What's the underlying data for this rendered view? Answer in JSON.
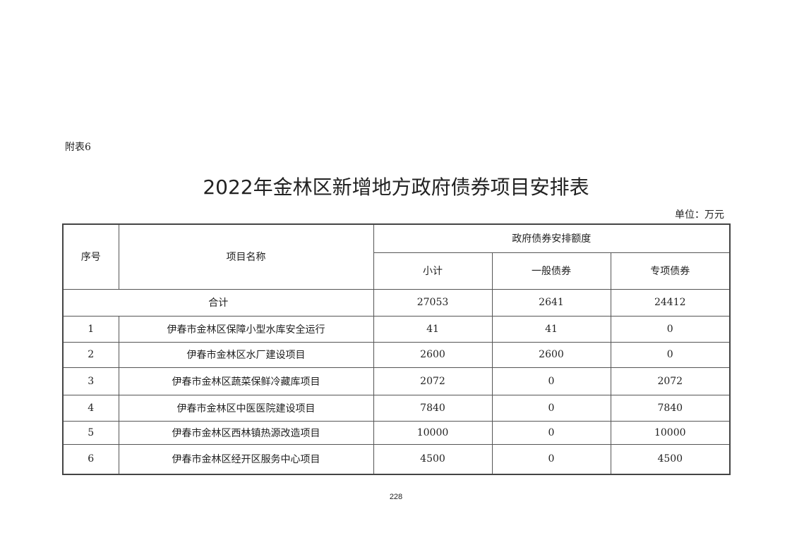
{
  "appendix_label": "附表6",
  "title": "2022年金林区新增地方政府债券项目安排表",
  "unit": "单位：万元",
  "table": {
    "headers": {
      "seq": "序号",
      "name": "项目名称",
      "group": "政府债券安排额度",
      "subtotal": "小计",
      "general": "一般债券",
      "special": "专项债券"
    },
    "total": {
      "label": "合计",
      "subtotal": "27053",
      "general": "2641",
      "special": "24412"
    },
    "rows": [
      {
        "seq": "1",
        "name": "伊春市金林区保障小型水库安全运行",
        "subtotal": "41",
        "general": "41",
        "special": "0"
      },
      {
        "seq": "2",
        "name": "伊春市金林区水厂建设项目",
        "subtotal": "2600",
        "general": "2600",
        "special": "0"
      },
      {
        "seq": "3",
        "name": "伊春市金林区蔬菜保鲜冷藏库项目",
        "subtotal": "2072",
        "general": "0",
        "special": "2072"
      },
      {
        "seq": "4",
        "name": "伊春市金林区中医医院建设项目",
        "subtotal": "7840",
        "general": "0",
        "special": "7840"
      },
      {
        "seq": "5",
        "name": "伊春市金林区西林镇热源改造项目",
        "subtotal": "10000",
        "general": "0",
        "special": "10000"
      },
      {
        "seq": "6",
        "name": "伊春市金林区经开区服务中心项目",
        "subtotal": "4500",
        "general": "0",
        "special": "4500"
      }
    ]
  },
  "page_number": "228"
}
